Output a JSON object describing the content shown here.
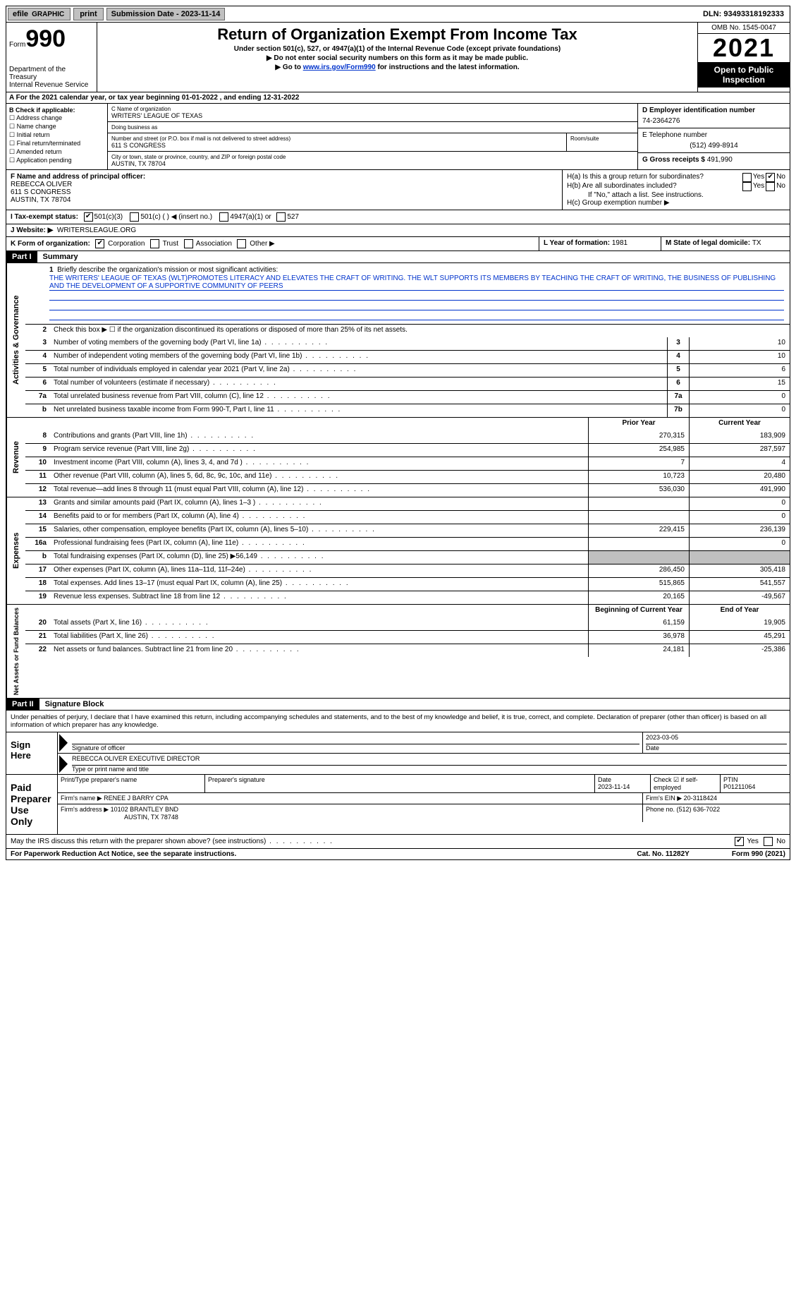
{
  "top": {
    "efile": "efile",
    "graphic": "GRAPHIC",
    "print": "print",
    "sub_date_label": "Submission Date - ",
    "sub_date": "2023-11-14",
    "dln_label": "DLN: ",
    "dln": "93493318192333"
  },
  "header": {
    "form": "Form",
    "form_no": "990",
    "dept": "Department of the Treasury",
    "irs": "Internal Revenue Service",
    "title": "Return of Organization Exempt From Income Tax",
    "sub1": "Under section 501(c), 527, or 4947(a)(1) of the Internal Revenue Code (except private foundations)",
    "sub2": "Do not enter social security numbers on this form as it may be made public.",
    "sub3_a": "Go to ",
    "sub3_link": "www.irs.gov/Form990",
    "sub3_b": " for instructions and the latest information.",
    "omb": "OMB No. 1545-0047",
    "year": "2021",
    "open": "Open to Public Inspection"
  },
  "row_a": "A For the 2021 calendar year, or tax year beginning 01-01-2022    , and ending 12-31-2022",
  "section_b": {
    "label": "B Check if applicable:",
    "opts": [
      "Address change",
      "Name change",
      "Initial return",
      "Final return/terminated",
      "Amended return",
      "Application pending"
    ],
    "c_label": "C Name of organization",
    "c_name": "WRITERS' LEAGUE OF TEXAS",
    "dba_label": "Doing business as",
    "dba": "",
    "addr_label": "Number and street (or P.O. box if mail is not delivered to street address)",
    "room_label": "Room/suite",
    "addr": "611 S CONGRESS",
    "city_label": "City or town, state or province, country, and ZIP or foreign postal code",
    "city": "AUSTIN, TX  78704",
    "d_label": "D Employer identification number",
    "d_val": "74-2364276",
    "e_label": "E Telephone number",
    "e_val": "(512) 499-8914",
    "g_label": "G Gross receipts $ ",
    "g_val": "491,990"
  },
  "fgh": {
    "f_label": "F Name and address of principal officer:",
    "f_name": "REBECCA OLIVER",
    "f_addr1": "611 S CONGRESS",
    "f_addr2": "AUSTIN, TX  78704",
    "ha": "H(a)  Is this a group return for subordinates?",
    "hb": "H(b)  Are all subordinates included?",
    "hb_note": "If \"No,\" attach a list. See instructions.",
    "hc": "H(c)  Group exemption number ▶",
    "yes": "Yes",
    "no": "No"
  },
  "tax_status": {
    "i": "I  Tax-exempt status:",
    "a": "501(c)(3)",
    "b": "501(c) (  ) ◀ (insert no.)",
    "c": "4947(a)(1) or",
    "d": "527"
  },
  "j": {
    "label": "J  Website: ▶",
    "val": "WRITERSLEAGUE.ORG"
  },
  "k": {
    "label": "K Form of organization:",
    "a": "Corporation",
    "b": "Trust",
    "c": "Association",
    "d": "Other ▶",
    "l": "L Year of formation: ",
    "l_val": "1981",
    "m": "M State of legal domicile: ",
    "m_val": "TX"
  },
  "part1": {
    "hdr": "Part I",
    "title": "Summary",
    "tab_ag": "Activities & Governance",
    "tab_rev": "Revenue",
    "tab_exp": "Expenses",
    "tab_net": "Net Assets or Fund Balances",
    "l1": "Briefly describe the organization's mission or most significant activities:",
    "mission": "THE WRITERS' LEAGUE OF TEXAS (WLT)PROMOTES LITERACY AND ELEVATES THE CRAFT OF WRITING. THE WLT SUPPORTS ITS MEMBERS BY TEACHING THE CRAFT OF WRITING, THE BUSINESS OF PUBLISHING AND THE DEVELOPMENT OF A SUPPORTIVE COMMUNITY OF PEERS",
    "l2": "Check this box ▶ ☐ if the organization discontinued its operations or disposed of more than 25% of its net assets.",
    "rows_ag": [
      {
        "n": "3",
        "d": "Number of voting members of the governing body (Part VI, line 1a)",
        "box": "3",
        "v": "10"
      },
      {
        "n": "4",
        "d": "Number of independent voting members of the governing body (Part VI, line 1b)",
        "box": "4",
        "v": "10"
      },
      {
        "n": "5",
        "d": "Total number of individuals employed in calendar year 2021 (Part V, line 2a)",
        "box": "5",
        "v": "6"
      },
      {
        "n": "6",
        "d": "Total number of volunteers (estimate if necessary)",
        "box": "6",
        "v": "15"
      },
      {
        "n": "7a",
        "d": "Total unrelated business revenue from Part VIII, column (C), line 12",
        "box": "7a",
        "v": "0"
      },
      {
        "n": "b",
        "d": "Net unrelated business taxable income from Form 990-T, Part I, line 11",
        "box": "7b",
        "v": "0"
      }
    ],
    "col_prior": "Prior Year",
    "col_curr": "Current Year",
    "rows_rev": [
      {
        "n": "8",
        "d": "Contributions and grants (Part VIII, line 1h)",
        "p": "270,315",
        "c": "183,909"
      },
      {
        "n": "9",
        "d": "Program service revenue (Part VIII, line 2g)",
        "p": "254,985",
        "c": "287,597"
      },
      {
        "n": "10",
        "d": "Investment income (Part VIII, column (A), lines 3, 4, and 7d )",
        "p": "7",
        "c": "4"
      },
      {
        "n": "11",
        "d": "Other revenue (Part VIII, column (A), lines 5, 6d, 8c, 9c, 10c, and 11e)",
        "p": "10,723",
        "c": "20,480"
      },
      {
        "n": "12",
        "d": "Total revenue—add lines 8 through 11 (must equal Part VIII, column (A), line 12)",
        "p": "536,030",
        "c": "491,990"
      }
    ],
    "rows_exp": [
      {
        "n": "13",
        "d": "Grants and similar amounts paid (Part IX, column (A), lines 1–3 )",
        "p": "",
        "c": "0"
      },
      {
        "n": "14",
        "d": "Benefits paid to or for members (Part IX, column (A), line 4)",
        "p": "",
        "c": "0"
      },
      {
        "n": "15",
        "d": "Salaries, other compensation, employee benefits (Part IX, column (A), lines 5–10)",
        "p": "229,415",
        "c": "236,139"
      },
      {
        "n": "16a",
        "d": "Professional fundraising fees (Part IX, column (A), line 11e)",
        "p": "",
        "c": "0"
      },
      {
        "n": "b",
        "d": "Total fundraising expenses (Part IX, column (D), line 25) ▶56,149",
        "p": "shaded",
        "c": "shaded"
      },
      {
        "n": "17",
        "d": "Other expenses (Part IX, column (A), lines 11a–11d, 11f–24e)",
        "p": "286,450",
        "c": "305,418"
      },
      {
        "n": "18",
        "d": "Total expenses. Add lines 13–17 (must equal Part IX, column (A), line 25)",
        "p": "515,865",
        "c": "541,557"
      },
      {
        "n": "19",
        "d": "Revenue less expenses. Subtract line 18 from line 12",
        "p": "20,165",
        "c": "-49,567"
      }
    ],
    "col_begin": "Beginning of Current Year",
    "col_end": "End of Year",
    "rows_net": [
      {
        "n": "20",
        "d": "Total assets (Part X, line 16)",
        "p": "61,159",
        "c": "19,905"
      },
      {
        "n": "21",
        "d": "Total liabilities (Part X, line 26)",
        "p": "36,978",
        "c": "45,291"
      },
      {
        "n": "22",
        "d": "Net assets or fund balances. Subtract line 21 from line 20",
        "p": "24,181",
        "c": "-25,386"
      }
    ]
  },
  "part2": {
    "hdr": "Part II",
    "title": "Signature Block",
    "penalty": "Under penalties of perjury, I declare that I have examined this return, including accompanying schedules and statements, and to the best of my knowledge and belief, it is true, correct, and complete. Declaration of preparer (other than officer) is based on all information of which preparer has any knowledge.",
    "sign_here": "Sign Here",
    "sig_officer": "Signature of officer",
    "sig_date": "2023-03-05",
    "date_label": "Date",
    "name_title": "REBECCA OLIVER  EXECUTIVE DIRECTOR",
    "name_label": "Type or print name and title",
    "paid": "Paid Preparer Use Only",
    "prep_name_label": "Print/Type preparer's name",
    "prep_name": "",
    "prep_sig_label": "Preparer's signature",
    "prep_date_label": "Date",
    "prep_date": "2023-11-14",
    "check_if": "Check ☑ if self-employed",
    "ptin_label": "PTIN",
    "ptin": "P01211064",
    "firm_name_label": "Firm's name    ▶ ",
    "firm_name": "RENEE J BARRY CPA",
    "firm_ein_label": "Firm's EIN ▶ ",
    "firm_ein": "20-3118424",
    "firm_addr_label": "Firm's address ▶ ",
    "firm_addr1": "10102 BRANTLEY BND",
    "firm_addr2": "AUSTIN, TX  78748",
    "phone_label": "Phone no. ",
    "phone": "(512) 636-7022",
    "may_irs": "May the IRS discuss this return with the preparer shown above? (see instructions)"
  },
  "footer": {
    "pra": "For Paperwork Reduction Act Notice, see the separate instructions.",
    "cat": "Cat. No. 11282Y",
    "form": "Form 990 (2021)"
  }
}
